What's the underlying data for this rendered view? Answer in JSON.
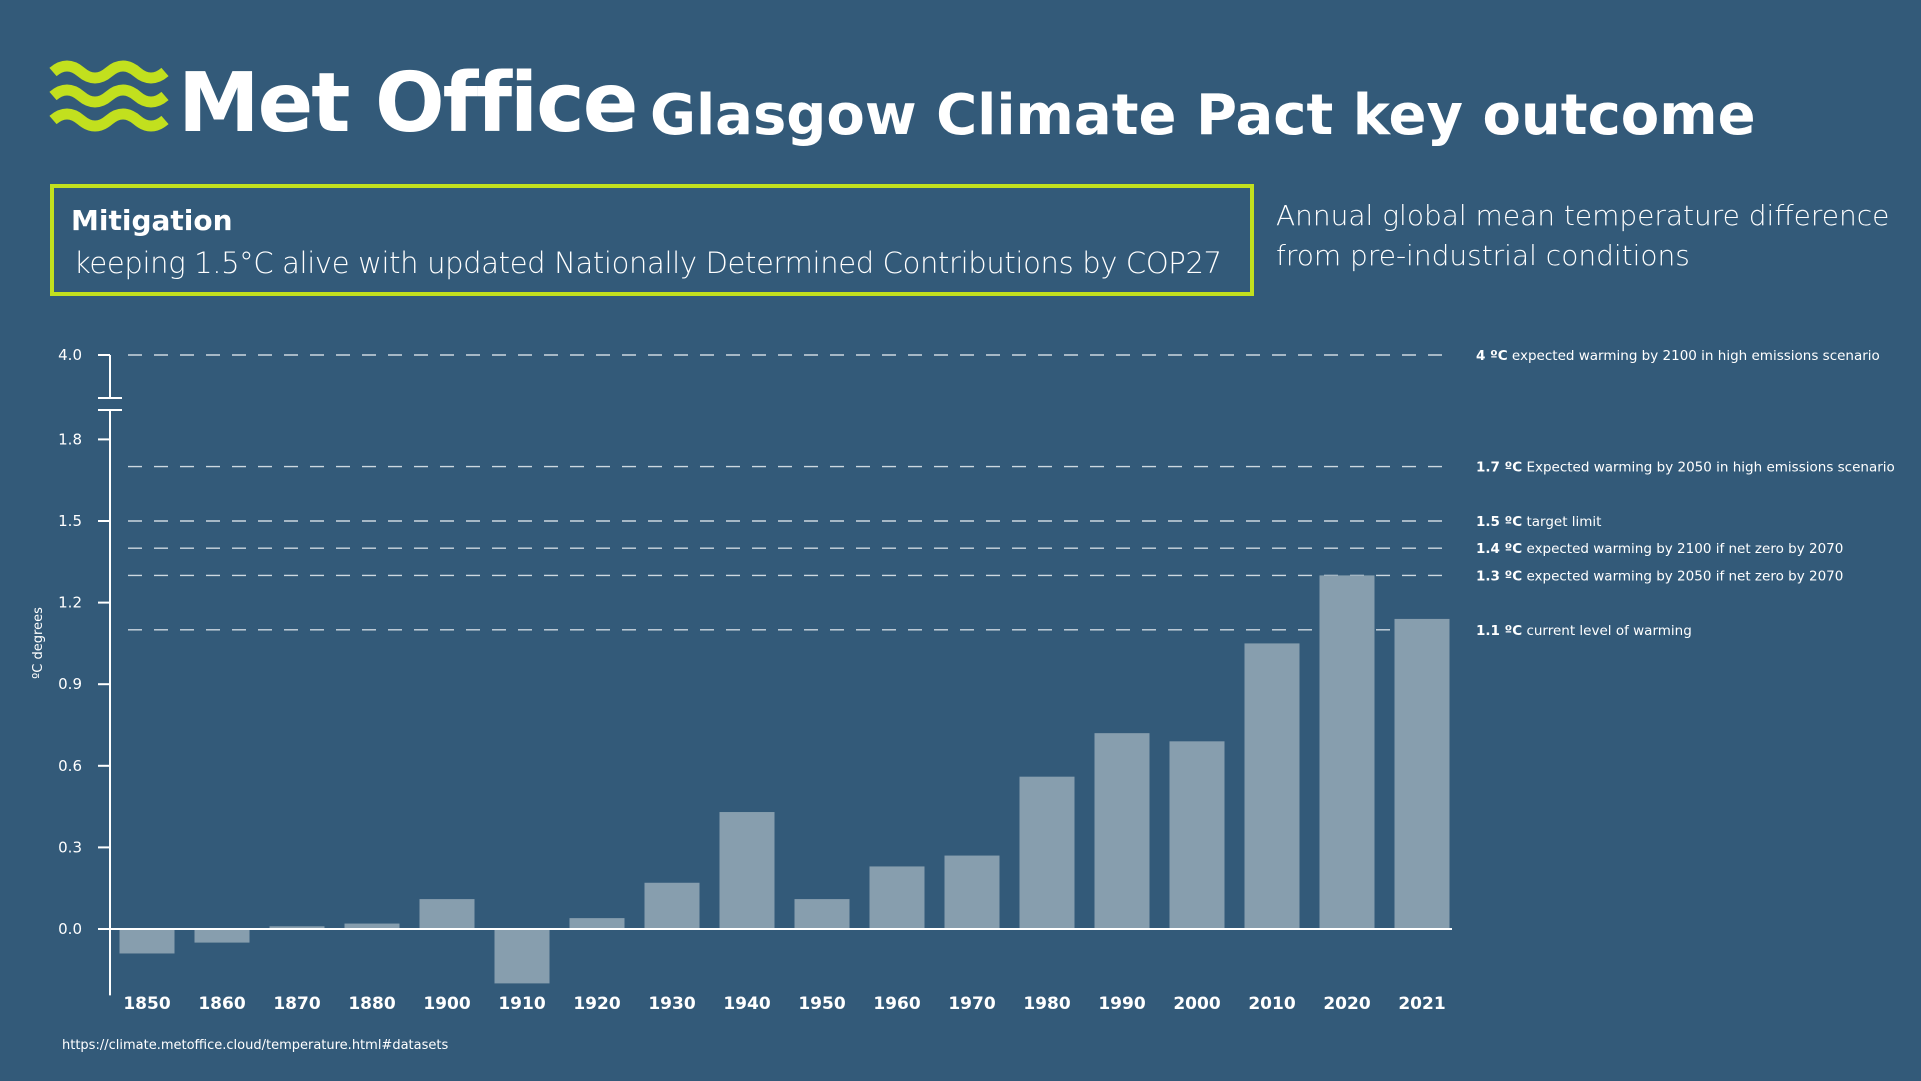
{
  "header": {
    "logo": "Met Office",
    "title": "Glasgow Climate Pact key outcome"
  },
  "callout": {
    "heading": "Mitigation",
    "text": "keeping 1.5°C alive with updated Nationally Determined Contributions by COP27"
  },
  "chart_data": {
    "type": "bar",
    "subtitle": "Annual global mean temperature difference from pre-industrial conditions",
    "y_label": "ºC degrees",
    "categories": [
      "1850",
      "1860",
      "1870",
      "1880",
      "1900",
      "1910",
      "1920",
      "1930",
      "1940",
      "1950",
      "1960",
      "1970",
      "1980",
      "1990",
      "2000",
      "2010",
      "2020",
      "2021"
    ],
    "values": [
      -0.09,
      -0.05,
      0.01,
      0.02,
      0.11,
      -0.2,
      0.04,
      0.17,
      0.43,
      0.11,
      0.23,
      0.27,
      0.56,
      0.72,
      0.69,
      1.05,
      1.3,
      1.14
    ],
    "color": "#879eae",
    "ylim": [
      -0.2,
      1.8
    ],
    "yticks": [
      {
        "value": 0,
        "label": "0.0"
      },
      0.3,
      0.6,
      0.9,
      1.2,
      1.5,
      1.8
    ],
    "break_tick": {
      "value": 4,
      "label": "4.0"
    },
    "reference_lines": [
      {
        "value": 4,
        "value_label": "4 ºC",
        "text": "expected warming by 2100 in high emissions scenario"
      },
      {
        "value": 1.7,
        "value_label": "1.7 ºC",
        "text": "Expected warming by 2050 in high emissions scenario"
      },
      {
        "value": 1.5,
        "value_label": "1.5 ºC",
        "text": "target limit"
      },
      {
        "value": 1.4,
        "value_label": "1.4 ºC",
        "text": "expected warming by 2100 if net zero by 2070"
      },
      {
        "value": 1.3,
        "value_label": "1.3 ºC",
        "text": "expected warming by 2050 if net zero by 2070"
      },
      {
        "value": 1.1,
        "value_label": "1.1 ºC",
        "text": "current level of warming"
      }
    ],
    "source": "https://climate.metoffice.cloud/temperature.html#datasets"
  }
}
